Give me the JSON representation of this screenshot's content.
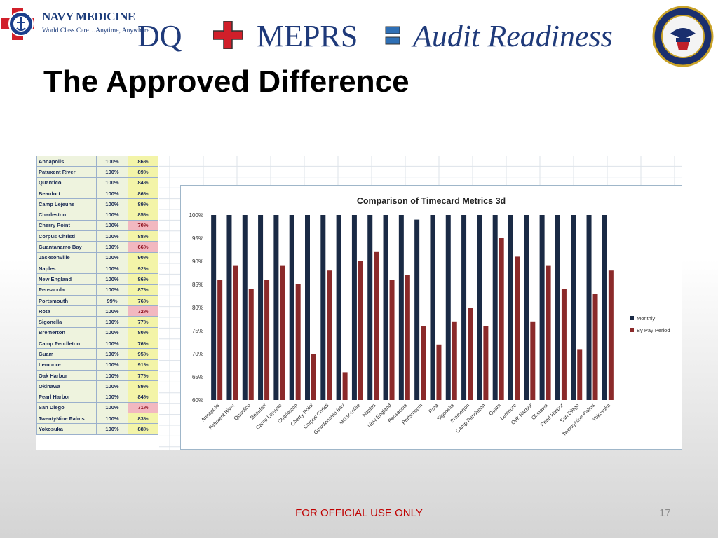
{
  "header": {
    "logo_brand": "NAVY MEDICINE",
    "logo_tagline": "World Class Care…Anytime, Anywhere",
    "dq": "DQ",
    "meprs": "MEPRS",
    "audit": "Audit Readiness"
  },
  "slide_title": "The Approved Difference",
  "footer": "FOR OFFICIAL USE ONLY",
  "page_number": "17",
  "colors": {
    "monthly": "#1a2a45",
    "pay_period": "#8b2a2a",
    "title_blue": "#1f3a7a"
  },
  "table": {
    "rows": [
      {
        "name": "Annapolis",
        "monthly": "100%",
        "pay": "86%",
        "low": false
      },
      {
        "name": "Patuxent River",
        "monthly": "100%",
        "pay": "89%",
        "low": false
      },
      {
        "name": "Quantico",
        "monthly": "100%",
        "pay": "84%",
        "low": false
      },
      {
        "name": "Beaufort",
        "monthly": "100%",
        "pay": "86%",
        "low": false
      },
      {
        "name": "Camp Lejeune",
        "monthly": "100%",
        "pay": "89%",
        "low": false
      },
      {
        "name": "Charleston",
        "monthly": "100%",
        "pay": "85%",
        "low": false
      },
      {
        "name": "Cherry Point",
        "monthly": "100%",
        "pay": "70%",
        "low": true
      },
      {
        "name": "Corpus Christi",
        "monthly": "100%",
        "pay": "88%",
        "low": false
      },
      {
        "name": "Guantanamo Bay",
        "monthly": "100%",
        "pay": "66%",
        "low": true
      },
      {
        "name": "Jacksonville",
        "monthly": "100%",
        "pay": "90%",
        "low": false
      },
      {
        "name": "Naples",
        "monthly": "100%",
        "pay": "92%",
        "low": false
      },
      {
        "name": "New England",
        "monthly": "100%",
        "pay": "86%",
        "low": false
      },
      {
        "name": "Pensacola",
        "monthly": "100%",
        "pay": "87%",
        "low": false
      },
      {
        "name": "Portsmouth",
        "monthly": "99%",
        "pay": "76%",
        "low": false
      },
      {
        "name": "Rota",
        "monthly": "100%",
        "pay": "72%",
        "low": true
      },
      {
        "name": "Sigonella",
        "monthly": "100%",
        "pay": "77%",
        "low": false
      },
      {
        "name": "Bremerton",
        "monthly": "100%",
        "pay": "80%",
        "low": false
      },
      {
        "name": "Camp Pendleton",
        "monthly": "100%",
        "pay": "76%",
        "low": false
      },
      {
        "name": "Guam",
        "monthly": "100%",
        "pay": "95%",
        "low": false
      },
      {
        "name": "Lemoore",
        "monthly": "100%",
        "pay": "91%",
        "low": false
      },
      {
        "name": "Oak Harbor",
        "monthly": "100%",
        "pay": "77%",
        "low": false
      },
      {
        "name": "Okinawa",
        "monthly": "100%",
        "pay": "89%",
        "low": false
      },
      {
        "name": "Pearl Harbor",
        "monthly": "100%",
        "pay": "84%",
        "low": false
      },
      {
        "name": "San Diego",
        "monthly": "100%",
        "pay": "71%",
        "low": true
      },
      {
        "name": "TwentyNine Palms",
        "monthly": "100%",
        "pay": "83%",
        "low": false
      },
      {
        "name": "Yokosuka",
        "monthly": "100%",
        "pay": "88%",
        "low": false
      }
    ]
  },
  "chart_data": {
    "type": "bar",
    "title": "Comparison of Timecard Metrics 3d",
    "xlabel": "",
    "ylabel": "",
    "ylim": [
      0.6,
      1.0
    ],
    "yticks": [
      "100%",
      "95%",
      "90%",
      "85%",
      "80%",
      "75%",
      "70%",
      "65%",
      "60%"
    ],
    "grid": false,
    "legend_position": "right",
    "categories": [
      "Annapolis",
      "Patuxent River",
      "Quantico",
      "Beaufort",
      "Camp Lejeune",
      "Charleston",
      "Cherry Point",
      "Corpus Christi",
      "Guantanamo Bay",
      "Jacksonville",
      "Naples",
      "New England",
      "Pensacola",
      "Portsmouth",
      "Rota",
      "Sigonella",
      "Bremerton",
      "Camp Pendleton",
      "Guam",
      "Lemoore",
      "Oak Harbor",
      "Okinawa",
      "Pearl Harbor",
      "San Diego",
      "TwentyNine Palms",
      "Yokosuka"
    ],
    "series": [
      {
        "name": "Monthly",
        "values": [
          1.0,
          1.0,
          1.0,
          1.0,
          1.0,
          1.0,
          1.0,
          1.0,
          1.0,
          1.0,
          1.0,
          1.0,
          1.0,
          0.99,
          1.0,
          1.0,
          1.0,
          1.0,
          1.0,
          1.0,
          1.0,
          1.0,
          1.0,
          1.0,
          1.0,
          1.0
        ]
      },
      {
        "name": "By Pay Period",
        "values": [
          0.86,
          0.89,
          0.84,
          0.86,
          0.89,
          0.85,
          0.7,
          0.88,
          0.66,
          0.9,
          0.92,
          0.86,
          0.87,
          0.76,
          0.72,
          0.77,
          0.8,
          0.76,
          0.95,
          0.91,
          0.77,
          0.89,
          0.84,
          0.71,
          0.83,
          0.88
        ]
      }
    ]
  }
}
